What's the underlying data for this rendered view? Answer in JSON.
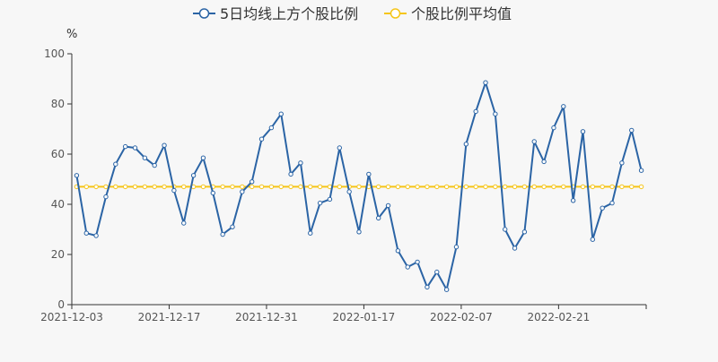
{
  "chart_data": {
    "type": "line",
    "unit_label": "%",
    "legend_position": "top-center",
    "grid": false,
    "ylim": [
      0,
      100
    ],
    "yticks": [
      0,
      20,
      40,
      60,
      80,
      100
    ],
    "xtick_labels": [
      "2021-12-03",
      "2021-12-17",
      "2021-12-31",
      "2022-01-17",
      "2022-02-07",
      "2022-02-21"
    ],
    "xtick_indices": [
      0,
      10,
      20,
      30,
      40,
      50
    ],
    "x": [
      "2021-12-03",
      "2021-12-06",
      "2021-12-07",
      "2021-12-08",
      "2021-12-09",
      "2021-12-10",
      "2021-12-13",
      "2021-12-14",
      "2021-12-15",
      "2021-12-16",
      "2021-12-17",
      "2021-12-20",
      "2021-12-21",
      "2021-12-22",
      "2021-12-23",
      "2021-12-24",
      "2021-12-27",
      "2021-12-28",
      "2021-12-29",
      "2021-12-30",
      "2021-12-31",
      "2022-01-04",
      "2022-01-05",
      "2022-01-06",
      "2022-01-07",
      "2022-01-10",
      "2022-01-11",
      "2022-01-12",
      "2022-01-13",
      "2022-01-14",
      "2022-01-17",
      "2022-01-18",
      "2022-01-19",
      "2022-01-20",
      "2022-01-21",
      "2022-01-24",
      "2022-01-25",
      "2022-01-26",
      "2022-01-27",
      "2022-01-28",
      "2022-02-07",
      "2022-02-08",
      "2022-02-09",
      "2022-02-10",
      "2022-02-11",
      "2022-02-14",
      "2022-02-15",
      "2022-02-16",
      "2022-02-17",
      "2022-02-18",
      "2022-02-21",
      "2022-02-22",
      "2022-02-23",
      "2022-02-24",
      "2022-02-25",
      "2022-02-28",
      "2022-03-01",
      "2022-03-02",
      "2022-03-03"
    ],
    "series": [
      {
        "name": "5日均线上方个股比例",
        "color": "#2b64a5",
        "values": [
          51.5,
          28.5,
          27.5,
          43,
          56,
          63,
          62.5,
          58.5,
          55.5,
          63.5,
          45.5,
          32.5,
          51.5,
          58.5,
          44.5,
          28,
          31,
          45,
          49,
          66,
          70.5,
          76,
          52,
          56.5,
          28.5,
          40.5,
          42,
          62.5,
          45,
          29,
          52,
          34.5,
          39.5,
          21.5,
          15,
          17,
          7,
          13,
          6,
          23,
          64,
          77,
          88.5,
          76,
          30,
          22.5,
          29,
          65,
          57,
          70.5,
          79,
          41.5,
          69,
          26,
          38.5,
          40.5,
          56.5,
          69.5,
          53.5
        ]
      },
      {
        "name": "个股比例平均值",
        "color": "#f5c518",
        "values": [
          47,
          47,
          47,
          47,
          47,
          47,
          47,
          47,
          47,
          47,
          47,
          47,
          47,
          47,
          47,
          47,
          47,
          47,
          47,
          47,
          47,
          47,
          47,
          47,
          47,
          47,
          47,
          47,
          47,
          47,
          47,
          47,
          47,
          47,
          47,
          47,
          47,
          47,
          47,
          47,
          47,
          47,
          47,
          47,
          47,
          47,
          47,
          47,
          47,
          47,
          47,
          47,
          47,
          47,
          47,
          47,
          47,
          47,
          47
        ]
      }
    ]
  }
}
